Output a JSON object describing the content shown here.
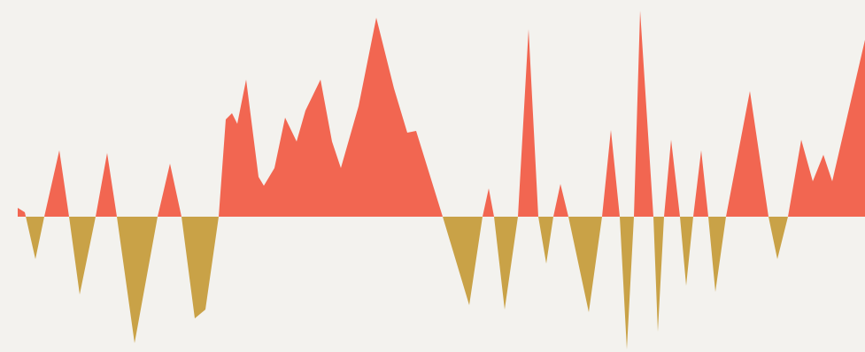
{
  "chart_data": {
    "type": "area",
    "x": [
      20,
      28,
      40,
      50,
      67,
      78,
      90,
      108,
      121,
      132,
      152,
      178,
      192,
      205,
      220,
      232,
      247,
      255,
      262,
      268,
      278,
      292,
      298,
      310,
      322,
      335,
      345,
      362,
      375,
      385,
      405,
      425,
      445,
      460,
      470,
      500,
      530,
      545,
      552,
      558,
      570,
      585,
      597,
      608,
      617,
      625,
      633,
      642,
      665,
      680,
      690,
      700,
      708,
      716,
      723,
      738,
      743,
      750,
      758,
      768,
      775,
      783,
      792,
      800,
      808,
      820,
      847,
      868,
      878,
      890,
      905,
      918,
      930,
      940,
      977
    ],
    "values": [
      10,
      5,
      -48,
      0,
      75,
      0,
      -88,
      0,
      72,
      0,
      -143,
      0,
      60,
      0,
      -115,
      -105,
      0,
      110,
      117,
      105,
      155,
      45,
      35,
      55,
      112,
      85,
      120,
      155,
      85,
      55,
      125,
      225,
      145,
      95,
      97,
      0,
      -100,
      0,
      32,
      0,
      -105,
      0,
      212,
      0,
      -53,
      0,
      37,
      0,
      -108,
      0,
      98,
      0,
      -150,
      0,
      233,
      0,
      -130,
      0,
      87,
      0,
      -78,
      0,
      75,
      0,
      -85,
      0,
      142,
      0,
      -48,
      0,
      87,
      40,
      70,
      40,
      200
    ],
    "xlim": [
      0,
      977
    ],
    "ylim": [
      -153,
      245
    ],
    "positive_color": "#f26651",
    "negative_color": "#c9a247"
  }
}
